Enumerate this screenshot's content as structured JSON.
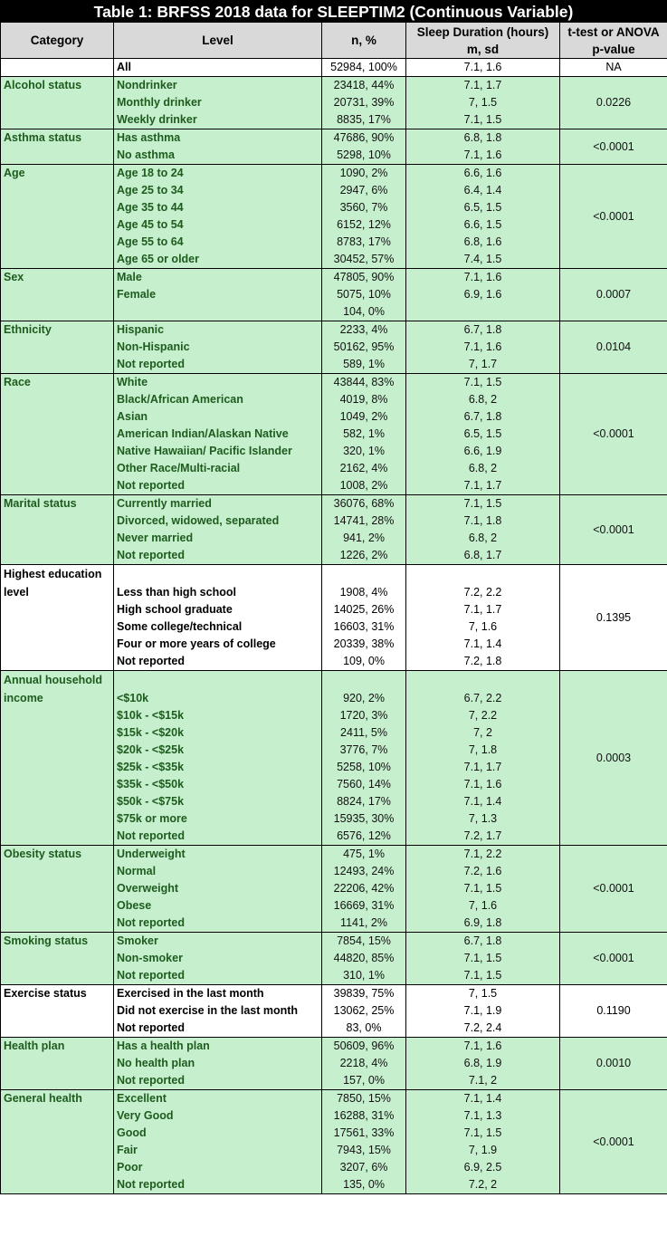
{
  "title": "Table 1: BRFSS 2018 data for SLEEPTIM2 (Continuous Variable)",
  "headers": {
    "category": "Category",
    "level": "Level",
    "n": "n, %",
    "sleep": "Sleep Duration (hours) m, sd",
    "p": "t-test or ANOVA p-value"
  },
  "colors": {
    "green_fill": "#c6efce",
    "green_text": "#1e5c1e",
    "header_fill": "#d9d9d9"
  },
  "all_row": {
    "level": "All",
    "n": "52984, 100%",
    "sd": "7.1, 1.6",
    "p": "NA"
  },
  "groups": [
    {
      "category": "Alcohol status",
      "theme": "green",
      "p": "0.0226",
      "rows": [
        {
          "level": "Nondrinker",
          "n": "23418, 44%",
          "sd": "7.1, 1.7"
        },
        {
          "level": "Monthly drinker",
          "n": "20731, 39%",
          "sd": "7, 1.5"
        },
        {
          "level": "Weekly drinker",
          "n": "8835, 17%",
          "sd": "7.1, 1.5"
        }
      ]
    },
    {
      "category": "Asthma status",
      "theme": "green",
      "p": "<0.0001",
      "rows": [
        {
          "level": "Has asthma",
          "n": "47686, 90%",
          "sd": "6.8, 1.8"
        },
        {
          "level": "No asthma",
          "n": "5298, 10%",
          "sd": "7.1, 1.6"
        }
      ]
    },
    {
      "category": "Age",
      "theme": "green",
      "p": "<0.0001",
      "rows": [
        {
          "level": "Age 18 to 24",
          "n": "1090, 2%",
          "sd": "6.6, 1.6"
        },
        {
          "level": "Age 25 to 34",
          "n": "2947, 6%",
          "sd": "6.4, 1.4"
        },
        {
          "level": "Age 35 to 44",
          "n": "3560, 7%",
          "sd": "6.5, 1.5"
        },
        {
          "level": "Age 45 to 54",
          "n": "6152, 12%",
          "sd": "6.6, 1.5"
        },
        {
          "level": "Age 55 to 64",
          "n": "8783, 17%",
          "sd": "6.8, 1.6"
        },
        {
          "level": "Age 65 or older",
          "n": "30452, 57%",
          "sd": "7.4, 1.5"
        }
      ]
    },
    {
      "category": "Sex",
      "theme": "green",
      "p": "0.0007",
      "rows": [
        {
          "level": "Male",
          "n": "47805, 90%",
          "sd": "7.1, 1.6"
        },
        {
          "level": "Female",
          "n": "5075, 10%",
          "sd": "6.9, 1.6"
        },
        {
          "level": "",
          "n": "104, 0%",
          "sd": ""
        }
      ]
    },
    {
      "category": "Ethnicity",
      "theme": "green",
      "p": "0.0104",
      "rows": [
        {
          "level": "Hispanic",
          "n": "2233, 4%",
          "sd": "6.7, 1.8"
        },
        {
          "level": "Non-Hispanic",
          "n": "50162, 95%",
          "sd": "7.1, 1.6"
        },
        {
          "level": "Not reported",
          "n": "589, 1%",
          "sd": "7, 1.7"
        }
      ]
    },
    {
      "category": "Race",
      "theme": "green",
      "p": "<0.0001",
      "rows": [
        {
          "level": "White",
          "n": "43844, 83%",
          "sd": "7.1, 1.5"
        },
        {
          "level": "Black/African American",
          "n": "4019, 8%",
          "sd": "6.8, 2"
        },
        {
          "level": "Asian",
          "n": "1049, 2%",
          "sd": "6.7, 1.8"
        },
        {
          "level": "American Indian/Alaskan Native",
          "n": "582, 1%",
          "sd": "6.5, 1.5"
        },
        {
          "level": "Native Hawaiian/ Pacific Islander",
          "n": "320, 1%",
          "sd": "6.6, 1.9"
        },
        {
          "level": "Other Race/Multi-racial",
          "n": "2162, 4%",
          "sd": "6.8, 2"
        },
        {
          "level": "Not reported",
          "n": "1008, 2%",
          "sd": "7.1, 1.7"
        }
      ]
    },
    {
      "category": "Marital status",
      "theme": "green",
      "p": "<0.0001",
      "rows": [
        {
          "level": "Currently married",
          "n": "36076, 68%",
          "sd": "7.1, 1.5"
        },
        {
          "level": "Divorced, widowed, separated",
          "n": "14741, 28%",
          "sd": "7.1, 1.8"
        },
        {
          "level": "Never married",
          "n": "941, 2%",
          "sd": "6.8, 2"
        },
        {
          "level": "Not reported",
          "n": "1226, 2%",
          "sd": "6.8, 1.7"
        }
      ]
    },
    {
      "category": "Highest education level",
      "theme": "white",
      "p": "0.1395",
      "tall_first": true,
      "rows": [
        {
          "level": "Less than high school",
          "n": "1908, 4%",
          "sd": "7.2, 2.2"
        },
        {
          "level": "High school graduate",
          "n": "14025, 26%",
          "sd": "7.1, 1.7"
        },
        {
          "level": "Some college/technical",
          "n": "16603, 31%",
          "sd": "7, 1.6"
        },
        {
          "level": "Four or more years of college",
          "n": "20339, 38%",
          "sd": "7.1, 1.4"
        },
        {
          "level": "Not reported",
          "n": "109, 0%",
          "sd": "7.2, 1.8"
        }
      ]
    },
    {
      "category": "Annual household income",
      "theme": "green",
      "p": "0.0003",
      "tall_first": true,
      "rows": [
        {
          "level": "<$10k",
          "n": "920, 2%",
          "sd": "6.7, 2.2"
        },
        {
          "level": "$10k - <$15k",
          "n": "1720, 3%",
          "sd": "7, 2.2"
        },
        {
          "level": "$15k - <$20k",
          "n": "2411, 5%",
          "sd": "7, 2"
        },
        {
          "level": "$20k - <$25k",
          "n": "3776, 7%",
          "sd": "7, 1.8"
        },
        {
          "level": "$25k - <$35k",
          "n": "5258, 10%",
          "sd": "7.1, 1.7"
        },
        {
          "level": "$35k - <$50k",
          "n": "7560, 14%",
          "sd": "7.1, 1.6"
        },
        {
          "level": "$50k - <$75k",
          "n": "8824, 17%",
          "sd": "7.1, 1.4"
        },
        {
          "level": "$75k or more",
          "n": "15935, 30%",
          "sd": "7, 1.3"
        },
        {
          "level": "Not reported",
          "n": "6576, 12%",
          "sd": "7.2, 1.7"
        }
      ]
    },
    {
      "category": "Obesity status",
      "theme": "green",
      "p": "<0.0001",
      "rows": [
        {
          "level": "Underweight",
          "n": "475, 1%",
          "sd": "7.1, 2.2"
        },
        {
          "level": "Normal",
          "n": "12493, 24%",
          "sd": "7.2, 1.6"
        },
        {
          "level": "Overweight",
          "n": "22206, 42%",
          "sd": "7.1, 1.5"
        },
        {
          "level": "Obese",
          "n": "16669, 31%",
          "sd": "7, 1.6"
        },
        {
          "level": "Not reported",
          "n": "1141, 2%",
          "sd": "6.9, 1.8"
        }
      ]
    },
    {
      "category": "Smoking status",
      "theme": "green",
      "p": "<0.0001",
      "rows": [
        {
          "level": "Smoker",
          "n": "7854, 15%",
          "sd": "6.7, 1.8"
        },
        {
          "level": "Non-smoker",
          "n": "44820, 85%",
          "sd": "7.1, 1.5"
        },
        {
          "level": "Not reported",
          "n": "310, 1%",
          "sd": "7.1, 1.5"
        }
      ]
    },
    {
      "category": "Exercise status",
      "theme": "white",
      "p": "0.1190",
      "rows": [
        {
          "level": "Exercised in the last month",
          "n": "39839, 75%",
          "sd": "7, 1.5"
        },
        {
          "level": "Did not exercise in the last month",
          "n": "13062, 25%",
          "sd": "7.1, 1.9"
        },
        {
          "level": "Not reported",
          "n": "83, 0%",
          "sd": "7.2, 2.4"
        }
      ]
    },
    {
      "category": "Health plan",
      "theme": "green",
      "p": "0.0010",
      "rows": [
        {
          "level": "Has a health plan",
          "n": "50609, 96%",
          "sd": "7.1, 1.6"
        },
        {
          "level": "No health plan",
          "n": "2218, 4%",
          "sd": "6.8, 1.9"
        },
        {
          "level": "Not reported",
          "n": "157, 0%",
          "sd": "7.1, 2"
        }
      ]
    },
    {
      "category": "General health",
      "theme": "green",
      "p": "<0.0001",
      "rows": [
        {
          "level": "Excellent",
          "n": "7850, 15%",
          "sd": "7.1, 1.4"
        },
        {
          "level": "Very Good",
          "n": "16288, 31%",
          "sd": "7.1, 1.3"
        },
        {
          "level": "Good",
          "n": "17561, 33%",
          "sd": "7.1, 1.5"
        },
        {
          "level": "Fair",
          "n": "7943, 15%",
          "sd": "7, 1.9"
        },
        {
          "level": "Poor",
          "n": "3207, 6%",
          "sd": "6.9, 2.5"
        },
        {
          "level": "Not reported",
          "n": "135, 0%",
          "sd": "7.2, 2"
        }
      ]
    }
  ]
}
